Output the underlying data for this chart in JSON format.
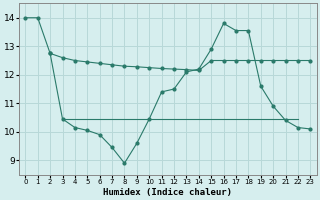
{
  "line1_x": [
    0,
    1,
    2,
    3,
    4,
    5,
    6,
    7,
    8,
    9,
    10,
    11,
    12,
    13,
    14,
    15,
    16,
    17,
    18,
    19,
    20,
    21,
    22,
    23
  ],
  "line1_y": [
    14.0,
    14.0,
    12.75,
    12.6,
    12.5,
    12.45,
    12.4,
    12.35,
    12.3,
    12.28,
    12.25,
    12.22,
    12.2,
    12.18,
    12.15,
    12.5,
    12.5,
    12.5,
    12.5,
    12.5,
    12.5,
    12.5,
    12.5,
    12.5
  ],
  "line2_x": [
    2,
    3,
    4,
    5,
    6,
    7,
    8,
    9,
    10,
    11,
    12,
    13,
    14,
    15,
    16,
    17,
    18,
    19,
    20,
    21,
    22,
    23
  ],
  "line2_y": [
    12.75,
    10.45,
    10.15,
    10.05,
    9.9,
    9.45,
    8.9,
    9.6,
    10.45,
    11.4,
    11.5,
    12.1,
    12.2,
    12.9,
    13.8,
    13.55,
    13.55,
    11.6,
    10.9,
    10.4,
    10.15,
    10.1
  ],
  "line3_x": [
    3,
    4,
    5,
    6,
    7,
    8,
    9,
    10,
    11,
    12,
    13,
    14,
    15,
    16,
    17,
    18,
    19,
    20,
    21,
    22
  ],
  "line3_y": [
    10.45,
    10.45,
    10.45,
    10.45,
    10.45,
    10.45,
    10.45,
    10.45,
    10.45,
    10.45,
    10.45,
    10.45,
    10.45,
    10.45,
    10.45,
    10.45,
    10.45,
    10.45,
    10.45,
    10.45
  ],
  "bg_color": "#d6eeee",
  "line_color": "#2a7a6a",
  "grid_color": "#b8d8d8",
  "xlabel": "Humidex (Indice chaleur)",
  "xlim": [
    -0.5,
    23.5
  ],
  "ylim": [
    8.5,
    14.5
  ],
  "yticks": [
    9,
    10,
    11,
    12,
    13,
    14
  ],
  "xticks": [
    0,
    1,
    2,
    3,
    4,
    5,
    6,
    7,
    8,
    9,
    10,
    11,
    12,
    13,
    14,
    15,
    16,
    17,
    18,
    19,
    20,
    21,
    22,
    23
  ]
}
